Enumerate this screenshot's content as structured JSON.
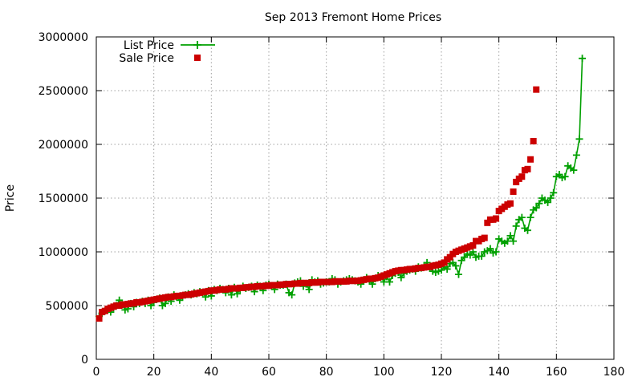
{
  "chart_data": {
    "type": "scatter",
    "title": "Sep 2013 Fremont Home Prices",
    "xlabel": "",
    "ylabel": "Price",
    "xlim": [
      0,
      180
    ],
    "ylim": [
      0,
      3000000
    ],
    "xticks": [
      0,
      20,
      40,
      60,
      80,
      100,
      120,
      140,
      160,
      180
    ],
    "yticks": [
      0,
      500000,
      1000000,
      1500000,
      2000000,
      2500000,
      3000000
    ],
    "grid": true,
    "legend_position": "top-left",
    "series": [
      {
        "name": "List Price",
        "color": "#00a000",
        "marker": "plus",
        "line": true,
        "values": [
          400000,
          430000,
          450000,
          460000,
          440000,
          480000,
          500000,
          550000,
          510000,
          460000,
          470000,
          520000,
          490000,
          530000,
          520000,
          540000,
          520000,
          550000,
          500000,
          530000,
          560000,
          570000,
          500000,
          520000,
          580000,
          540000,
          600000,
          580000,
          550000,
          590000,
          600000,
          610000,
          600000,
          620000,
          610000,
          630000,
          620000,
          580000,
          640000,
          590000,
          650000,
          640000,
          660000,
          650000,
          620000,
          660000,
          600000,
          670000,
          610000,
          650000,
          680000,
          660000,
          670000,
          680000,
          630000,
          690000,
          680000,
          640000,
          690000,
          700000,
          680000,
          650000,
          700000,
          690000,
          690000,
          700000,
          620000,
          600000,
          710000,
          720000,
          730000,
          680000,
          700000,
          650000,
          740000,
          720000,
          730000,
          700000,
          710000,
          720000,
          720000,
          750000,
          740000,
          700000,
          720000,
          730000,
          740000,
          750000,
          740000,
          730000,
          720000,
          700000,
          740000,
          760000,
          730000,
          700000,
          750000,
          780000,
          770000,
          720000,
          770000,
          720000,
          780000,
          800000,
          810000,
          760000,
          800000,
          820000,
          830000,
          840000,
          820000,
          860000,
          850000,
          870000,
          900000,
          850000,
          820000,
          810000,
          820000,
          830000,
          860000,
          840000,
          890000,
          900000,
          870000,
          790000,
          920000,
          950000,
          980000,
          970000,
          1000000,
          950000,
          960000,
          960000,
          1000000,
          1010000,
          1030000,
          990000,
          1000000,
          1120000,
          1100000,
          1080000,
          1100000,
          1150000,
          1100000,
          1240000,
          1300000,
          1320000,
          1220000,
          1200000,
          1320000,
          1390000,
          1410000,
          1450000,
          1500000,
          1480000,
          1460000,
          1500000,
          1550000,
          1700000,
          1720000,
          1690000,
          1700000,
          1800000,
          1780000,
          1760000,
          1900000,
          2050000,
          2800000
        ]
      },
      {
        "name": "Sale Price",
        "color": "#cc0000",
        "marker": "square",
        "line": false,
        "values": [
          380000,
          440000,
          450000,
          470000,
          480000,
          490000,
          500000,
          500000,
          510000,
          510000,
          515000,
          520000,
          520000,
          530000,
          530000,
          535000,
          540000,
          545000,
          550000,
          555000,
          560000,
          565000,
          570000,
          575000,
          580000,
          580000,
          585000,
          590000,
          590000,
          595000,
          600000,
          600000,
          605000,
          610000,
          615000,
          620000,
          625000,
          630000,
          635000,
          640000,
          640000,
          645000,
          650000,
          650000,
          650000,
          655000,
          660000,
          660000,
          660000,
          665000,
          665000,
          670000,
          670000,
          675000,
          675000,
          680000,
          680000,
          680000,
          685000,
          685000,
          690000,
          690000,
          690000,
          695000,
          695000,
          700000,
          700000,
          700000,
          705000,
          705000,
          710000,
          710000,
          710000,
          710000,
          715000,
          715000,
          715000,
          720000,
          720000,
          720000,
          720000,
          720000,
          725000,
          725000,
          725000,
          725000,
          725000,
          730000,
          730000,
          730000,
          730000,
          735000,
          740000,
          745000,
          750000,
          750000,
          755000,
          760000,
          770000,
          780000,
          790000,
          800000,
          810000,
          820000,
          825000,
          830000,
          830000,
          835000,
          840000,
          840000,
          845000,
          850000,
          850000,
          855000,
          860000,
          860000,
          870000,
          875000,
          880000,
          890000,
          900000,
          930000,
          950000,
          980000,
          1000000,
          1010000,
          1020000,
          1030000,
          1040000,
          1050000,
          1060000,
          1100000,
          1100000,
          1120000,
          1130000,
          1270000,
          1300000,
          1300000,
          1310000,
          1380000,
          1400000,
          1420000,
          1440000,
          1450000,
          1560000,
          1650000,
          1680000,
          1700000,
          1760000,
          1770000,
          1860000,
          2030000,
          2510000
        ]
      }
    ]
  }
}
